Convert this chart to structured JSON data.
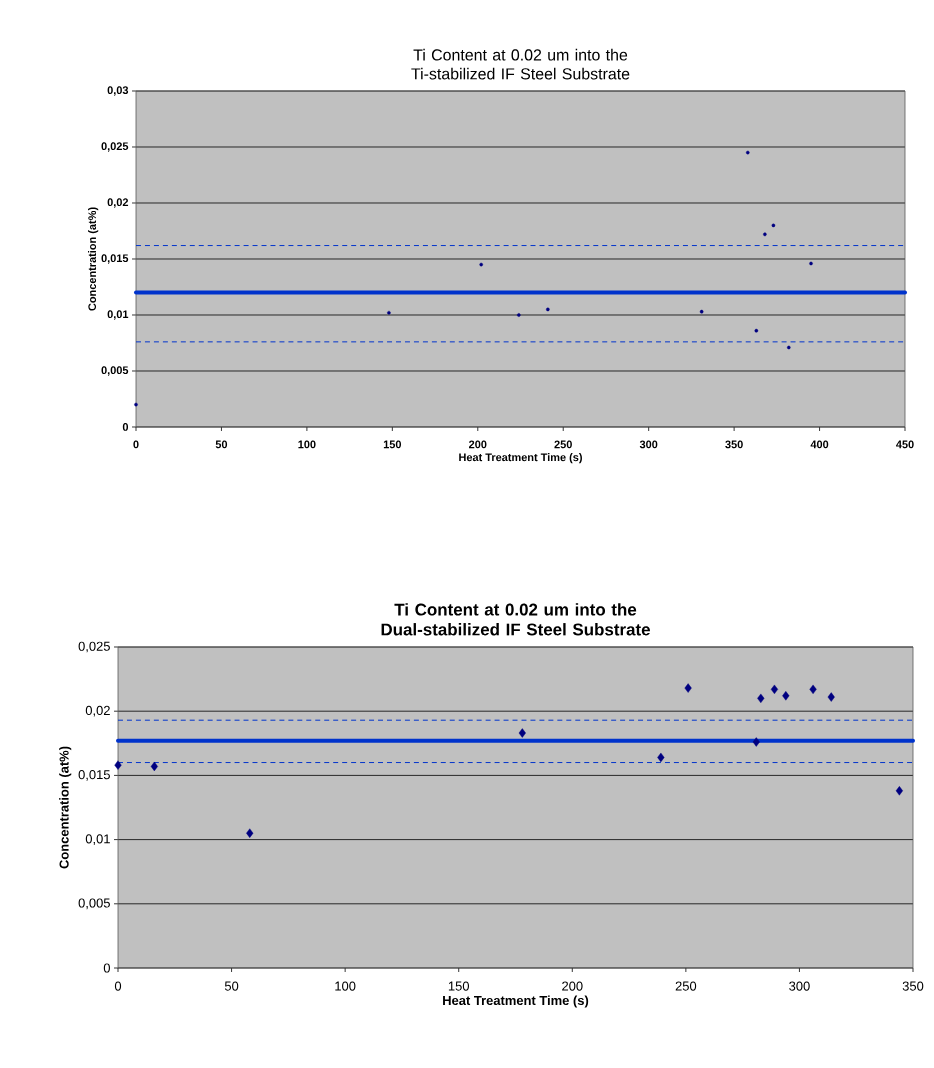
{
  "chart_data": [
    {
      "type": "scatter",
      "title": "Ti Content at 0.02 um into the Ti-stabilized IF Steel Substrate",
      "xlabel": "Heat Treatment Time (s)",
      "ylabel": "Concentration  (at%)",
      "x": [
        0,
        148,
        202,
        224,
        241,
        331,
        358,
        363,
        368,
        373,
        382,
        395
      ],
      "values": [
        0.002,
        0.0102,
        0.0145,
        0.01,
        0.0105,
        0.0103,
        0.0245,
        0.0086,
        0.0172,
        0.018,
        0.0071,
        0.0146
      ],
      "color": "#000080",
      "marker": "circle",
      "grid": "y",
      "xlim": [
        0,
        450
      ],
      "xticks": [
        0,
        50,
        100,
        150,
        200,
        250,
        300,
        350,
        400,
        450
      ],
      "ylim": [
        0,
        0.03
      ],
      "yticks": [
        0,
        {
          "value": 0.005,
          "label": "0,005"
        },
        {
          "value": 0.01,
          "label": "0,01"
        },
        {
          "value": 0.015,
          "label": "0,015"
        },
        {
          "value": 0.02,
          "label": "0,02"
        },
        {
          "value": 0.025,
          "label": "0,025"
        },
        {
          "value": 0.03,
          "label": "0,03"
        }
      ],
      "ref_lines": [
        {
          "axis": "y",
          "value": 0.012,
          "color": "#0033cc",
          "line_style": "solid"
        },
        {
          "axis": "y",
          "value": 0.0162,
          "color": "#0033cc",
          "line_style": "dashed"
        },
        {
          "axis": "y",
          "value": 0.0076,
          "color": "#0033cc",
          "line_style": "dashed"
        }
      ]
    },
    {
      "type": "scatter",
      "title": "Ti Content at 0.02 um into the Dual-stabilized IF Steel Substrate",
      "xlabel": "Heat Treatment Time (s)",
      "ylabel": "Concentration (at%)",
      "x": [
        0,
        16,
        58,
        178,
        239,
        251,
        281,
        283,
        289,
        294,
        306,
        314,
        344
      ],
      "values": [
        0.0158,
        0.0157,
        0.0105,
        0.0183,
        0.0164,
        0.0218,
        0.0176,
        0.021,
        0.0217,
        0.0212,
        0.0217,
        0.0211,
        0.0138
      ],
      "color": "#000080",
      "marker": "diamond",
      "grid": "y",
      "xlim": [
        0,
        350
      ],
      "xticks": [
        0,
        50,
        100,
        150,
        200,
        250,
        300,
        350
      ],
      "ylim": [
        0,
        0.025
      ],
      "yticks": [
        0,
        {
          "value": 0.005,
          "label": "0,005"
        },
        {
          "value": 0.01,
          "label": "0,01"
        },
        {
          "value": 0.015,
          "label": "0,015"
        },
        {
          "value": 0.02,
          "label": "0,02"
        },
        {
          "value": 0.025,
          "label": "0,025"
        }
      ],
      "ref_lines": [
        {
          "axis": "y",
          "value": 0.0177,
          "color": "#0033cc",
          "line_style": "solid"
        },
        {
          "axis": "y",
          "value": 0.0193,
          "color": "#0033cc",
          "line_style": "dashed"
        },
        {
          "axis": "y",
          "value": 0.016,
          "color": "#0033cc",
          "line_style": "dashed"
        }
      ]
    }
  ]
}
